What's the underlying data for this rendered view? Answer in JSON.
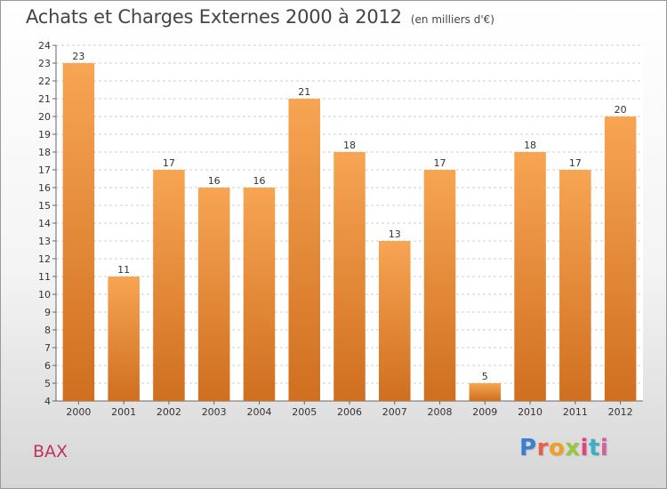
{
  "header": {
    "title": "Achats et Charges Externes 2000 à 2012",
    "subtitle": "(en milliers d'€)"
  },
  "footer": {
    "commune": "BAX",
    "logo_text": "Proxiti",
    "logo_colors": [
      "#3a7fd0",
      "#e8604a",
      "#f0a020",
      "#9bc53d",
      "#e0457b",
      "#3ab0c8",
      "#d65fa0"
    ]
  },
  "colors": {
    "bar_top": "#f7a553",
    "bar_bottom": "#cf6f1f",
    "grid": "#cccccc",
    "axis": "#666666",
    "text": "#333333"
  },
  "chart_data": {
    "type": "bar",
    "title": "Achats et Charges Externes 2000 à 2012",
    "subtitle": "(en milliers d'€)",
    "xlabel": "",
    "ylabel": "",
    "categories": [
      "2000",
      "2001",
      "2002",
      "2003",
      "2004",
      "2005",
      "2006",
      "2007",
      "2008",
      "2009",
      "2010",
      "2011",
      "2012"
    ],
    "values": [
      23,
      11,
      17,
      16,
      16,
      21,
      18,
      13,
      17,
      5,
      18,
      17,
      20
    ],
    "ylim": [
      4,
      24
    ],
    "yticks": [
      4,
      5,
      6,
      7,
      8,
      9,
      10,
      11,
      12,
      13,
      14,
      15,
      16,
      17,
      18,
      19,
      20,
      21,
      22,
      23,
      24
    ],
    "grid": true,
    "data_labels": true
  }
}
